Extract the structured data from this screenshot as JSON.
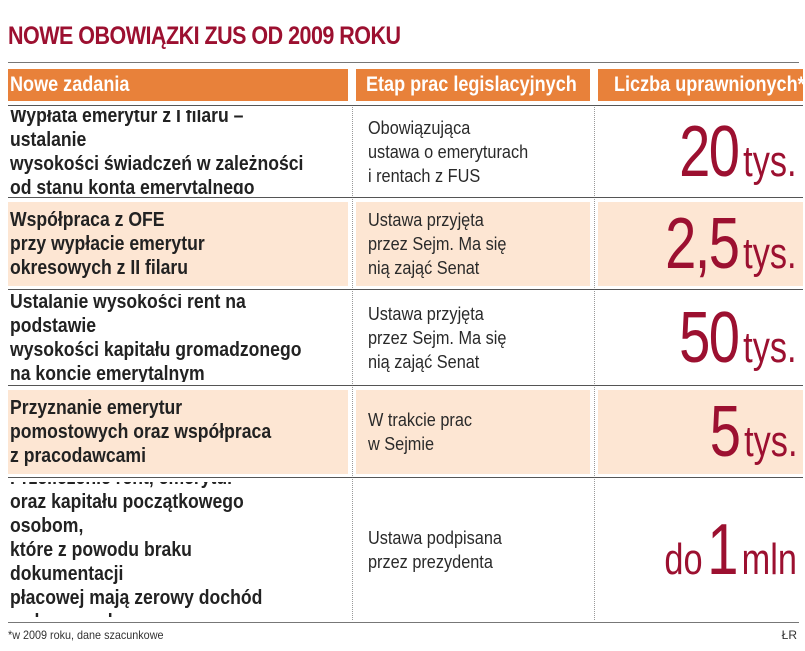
{
  "title": "NOWE OBOWIĄZKI ZUS OD 2009 ROKU",
  "columns": {
    "task": "Nowe zadania",
    "stage": "Etap prac legislacyjnych",
    "count": "Liczba uprawnionych*"
  },
  "rows": [
    {
      "task": "Wypłata emerytur z I filaru – ustalanie\nwysokości świadczeń w zależności\nod stanu konta emerytalnego",
      "stage": "Obowiązująca\nustawa o emeryturach\ni rentach z FUS",
      "prefix": "",
      "value": "20",
      "unit": "tys."
    },
    {
      "task": "Współpraca z OFE\nprzy wypłacie emerytur\nokresowych z II filaru",
      "stage": "Ustawa przyjęta\nprzez Sejm. Ma się\nnią zająć Senat",
      "prefix": "",
      "value": "2,5",
      "unit": "tys."
    },
    {
      "task": "Ustalanie wysokości rent na podstawie\nwysokości kapitału gromadzonego\nna koncie emerytalnym",
      "stage": "Ustawa przyjęta\nprzez Sejm. Ma się\nnią zająć Senat",
      "prefix": "",
      "value": "50",
      "unit": "tys."
    },
    {
      "task": "Przyznanie emerytur\npomostowych oraz współpraca\nz pracodawcami",
      "stage": "W trakcie prac\nw Sejmie",
      "prefix": "",
      "value": "5",
      "unit": "tys."
    },
    {
      "task": "Przeliczenie rent, emerytur\noraz kapitału początkowego osobom,\nktóre z powodu braku dokumentacji\npłacowej mają zerowy dochód\nw danym roku",
      "stage": "Ustawa podpisana\nprzez prezydenta",
      "prefix": "do",
      "value": "1",
      "unit": "mln"
    }
  ],
  "footnote": "*w 2009 roku, dane szacunkowe",
  "source": "ŁR",
  "colors": {
    "title": "#9c1030",
    "header_bg": "#e8813a",
    "row_tint": "#fde6d3",
    "value": "#9c1030"
  }
}
